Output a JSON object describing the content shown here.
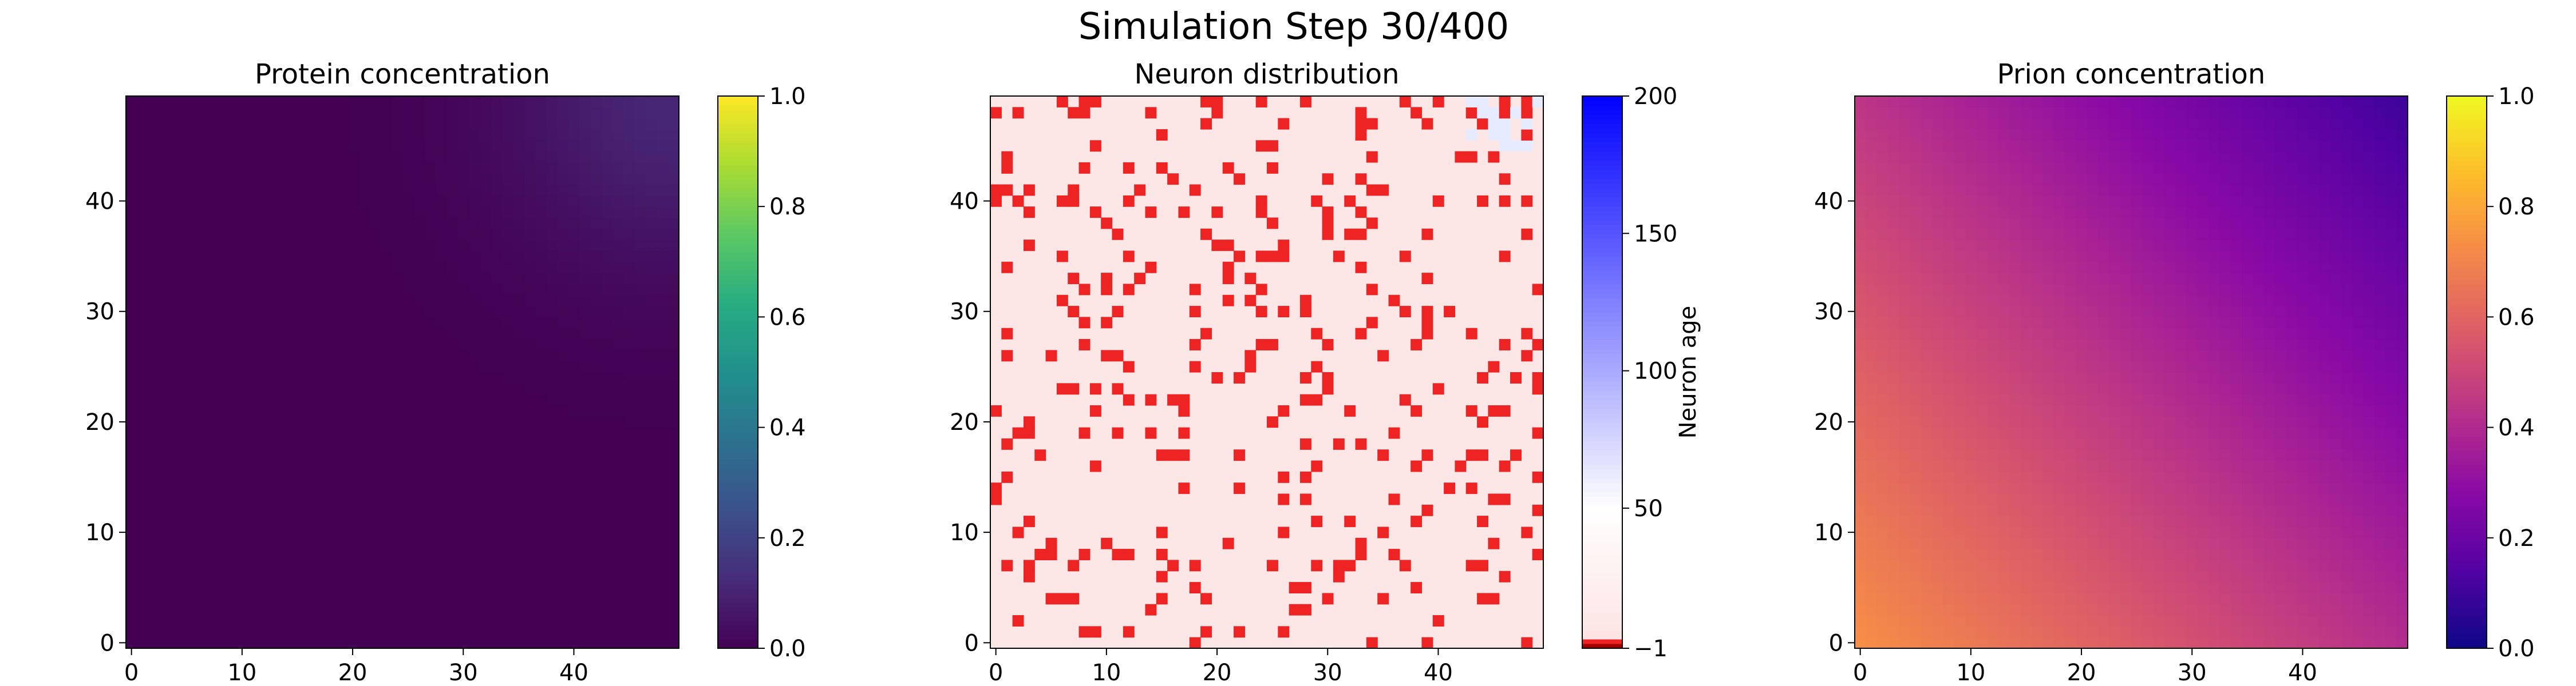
{
  "figure": {
    "title": "Simulation Step 30/400"
  },
  "chart_data": [
    {
      "type": "heatmap",
      "title": "Protein concentration",
      "xlabel": "",
      "ylabel": "",
      "grid_size": 50,
      "xlim": [
        0,
        49
      ],
      "ylim": [
        0,
        49
      ],
      "x_ticks": [
        0,
        10,
        20,
        30,
        40
      ],
      "y_ticks": [
        0,
        10,
        20,
        30,
        40
      ],
      "colormap": "viridis",
      "value_range": [
        0,
        1
      ],
      "colorbar_ticks": [
        "0.0",
        "0.2",
        "0.4",
        "0.6",
        "0.8",
        "1.0"
      ],
      "colorbar_label": "",
      "field": {
        "description": "nearly zero everywhere with a faint bump at the top-right corner",
        "base_value": 0.0,
        "peak_value": 0.11,
        "peak_location": [
          49,
          49
        ]
      }
    },
    {
      "type": "heatmap",
      "title": "Neuron distribution",
      "xlabel": "",
      "ylabel": "",
      "grid_size": 50,
      "xlim": [
        0,
        49
      ],
      "ylim": [
        0,
        49
      ],
      "x_ticks": [
        0,
        10,
        20,
        30,
        40
      ],
      "y_ticks": [
        0,
        10,
        20,
        30,
        40
      ],
      "colormap": "custom red-white-blue",
      "value_range": [
        -1,
        200
      ],
      "colorbar_ticks": [
        "−1",
        "50",
        "100",
        "150",
        "200"
      ],
      "colorbar_label": "Neuron age",
      "background_color": "#fde6e6",
      "dead_color": "#ee2424",
      "dead_value": -1,
      "dead_cell_fraction": 0.12,
      "field": {
        "description": "mostly pale pink cells (age about 0-30) with scattered red dead cells (value -1); a few faint bluish cells near the top-right corner"
      }
    },
    {
      "type": "heatmap",
      "title": "Prion concentration",
      "xlabel": "",
      "ylabel": "",
      "grid_size": 50,
      "xlim": [
        0,
        49
      ],
      "ylim": [
        0,
        49
      ],
      "x_ticks": [
        0,
        10,
        20,
        30,
        40
      ],
      "y_ticks": [
        0,
        10,
        20,
        30,
        40
      ],
      "colormap": "plasma",
      "value_range": [
        0,
        1
      ],
      "colorbar_ticks": [
        "0.0",
        "0.2",
        "0.4",
        "0.6",
        "0.8",
        "1.0"
      ],
      "colorbar_label": "",
      "field": {
        "description": "smooth gradient, highest at bottom-left and lowest at top-right",
        "corner_values": {
          "bottom_left": 0.73,
          "bottom_right": 0.41,
          "top_left": 0.44,
          "top_right": 0.1
        }
      }
    }
  ]
}
